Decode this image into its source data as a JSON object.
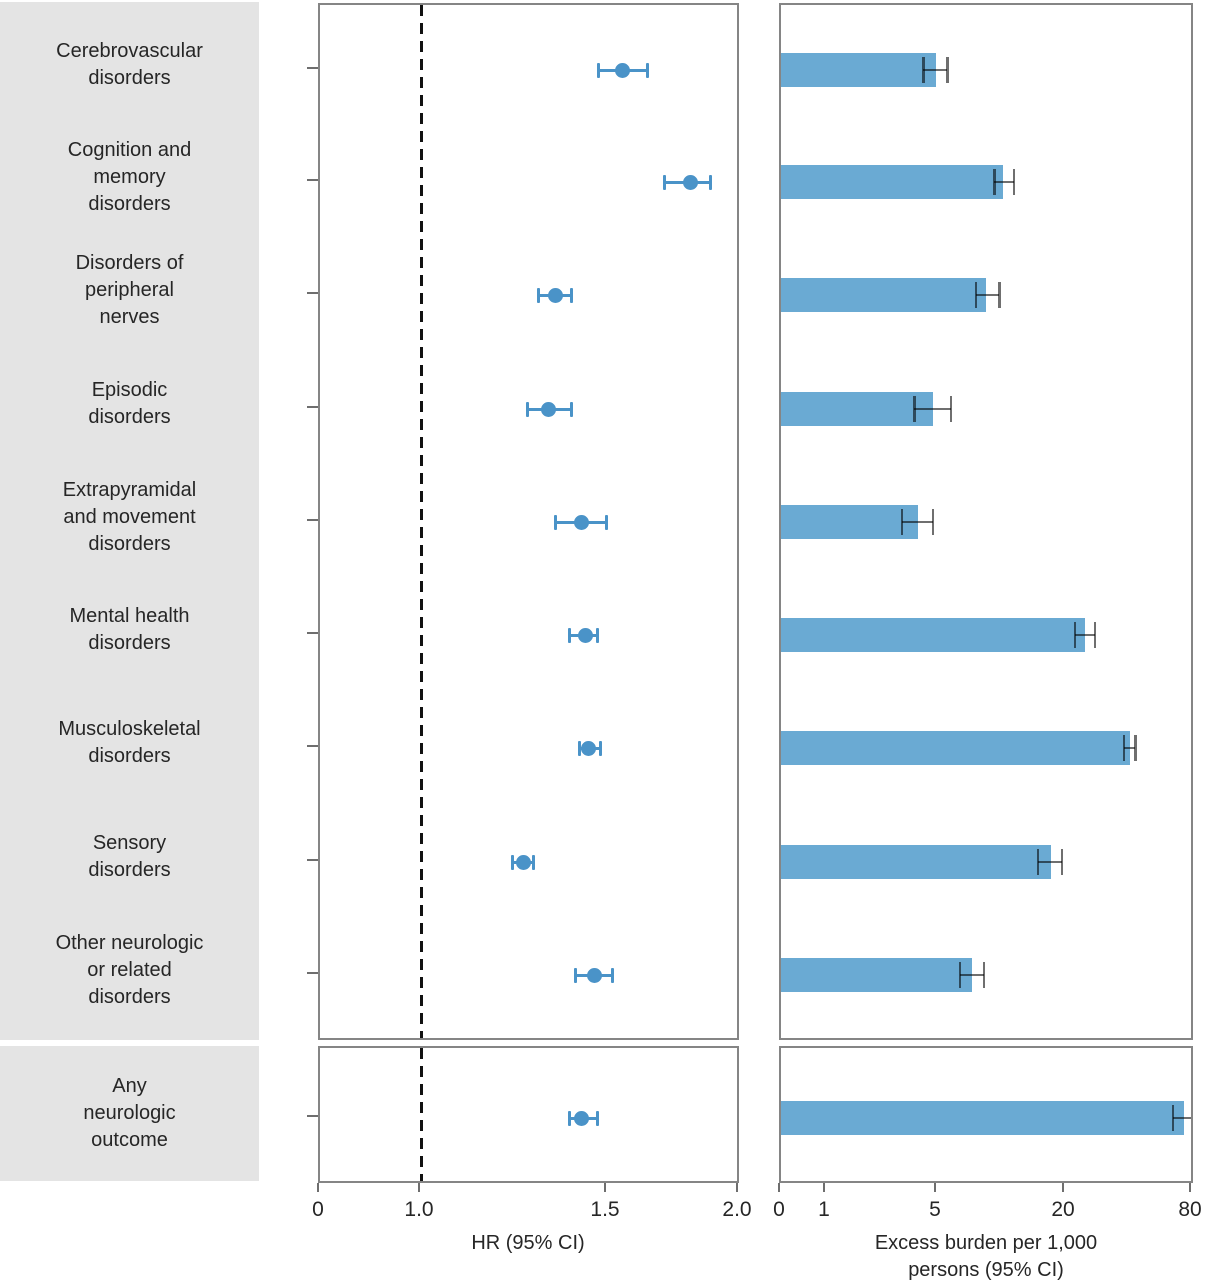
{
  "figure_title": "",
  "colors": {
    "bar_fill": "#6aaad3",
    "marker_blue": "#4a93c8",
    "label_box_gray": "#e4e4e4",
    "reference_line": "#111111",
    "error_bar_gray": "#6f6f6f",
    "panel_border": "#858585"
  },
  "chart_data": [
    {
      "type": "scatter",
      "subtype": "forest-plot",
      "xlabel": "HR (95% CI)",
      "x_ticks": [
        "0",
        "1.0",
        "1.5",
        "2.0"
      ],
      "x_tick_values": [
        0,
        1.0,
        1.5,
        2.0
      ],
      "xlim": [
        0,
        2.0
      ],
      "scale": "log above 1, compressed 0-1 segment",
      "reference_line": 1.0,
      "grid": false,
      "legend": "none",
      "categories": [
        "Cerebrovascular disorders",
        "Cognition and memory disorders",
        "Disorders of peripheral nerves",
        "Episodic disorders",
        "Extrapyramidal and movement disorders",
        "Mental health disorders",
        "Musculoskeletal disorders",
        "Sensory disorders",
        "Other neurologic or related disorders",
        "Any neurologic outcome"
      ],
      "values": [
        1.55,
        1.8,
        1.34,
        1.32,
        1.42,
        1.43,
        1.44,
        1.25,
        1.46,
        1.42
      ],
      "ci_low": [
        1.47,
        1.7,
        1.29,
        1.26,
        1.34,
        1.38,
        1.41,
        1.22,
        1.4,
        1.38
      ],
      "ci_high": [
        1.64,
        1.88,
        1.39,
        1.39,
        1.5,
        1.47,
        1.48,
        1.28,
        1.52,
        1.47
      ]
    },
    {
      "type": "bar",
      "subtype": "horizontal-bars-with-ci",
      "xlabel": "Excess burden per 1,000 persons (95% CI)",
      "xlabel_line1": "Excess burden per 1,000",
      "xlabel_line2": "persons (95% CI)",
      "x_ticks": [
        "0",
        "1",
        "5",
        "20",
        "80"
      ],
      "x_tick_values": [
        0,
        1,
        5,
        20,
        80
      ],
      "xlim": [
        0,
        80
      ],
      "scale": "log-like with compressed 0-1 segment",
      "grid": false,
      "legend": "none",
      "categories": [
        "Cerebrovascular disorders",
        "Cognition and memory disorders",
        "Disorders of peripheral nerves",
        "Episodic disorders",
        "Extrapyramidal and movement disorders",
        "Mental health disorders",
        "Musculoskeletal disorders",
        "Sensory disorders",
        "Other neurologic or related disorders",
        "Any neurologic outcome"
      ],
      "values": [
        4.9,
        10.2,
        8.5,
        4.7,
        3.8,
        24.9,
        40.6,
        17.1,
        7.3,
        73.0
      ],
      "ci_low": [
        4.1,
        9.3,
        7.6,
        3.6,
        3.0,
        22.3,
        38.0,
        14.9,
        6.4,
        65.0
      ],
      "ci_high": [
        5.6,
        11.5,
        9.8,
        5.8,
        4.7,
        27.7,
        43.1,
        19.3,
        8.3,
        79.8
      ]
    }
  ],
  "row_label_lines": [
    [
      "Cerebrovascular",
      "disorders"
    ],
    [
      "Cognition and",
      "memory",
      "disorders"
    ],
    [
      "Disorders of",
      "peripheral",
      "nerves"
    ],
    [
      "Episodic",
      "disorders"
    ],
    [
      "Extrapyramidal",
      "and movement",
      "disorders"
    ],
    [
      "Mental health",
      "disorders"
    ],
    [
      "Musculoskeletal",
      "disorders"
    ],
    [
      "Sensory",
      "disorders"
    ],
    [
      "Other neurologic",
      "or related",
      "disorders"
    ],
    [
      "Any",
      "neurologic",
      "outcome"
    ]
  ]
}
